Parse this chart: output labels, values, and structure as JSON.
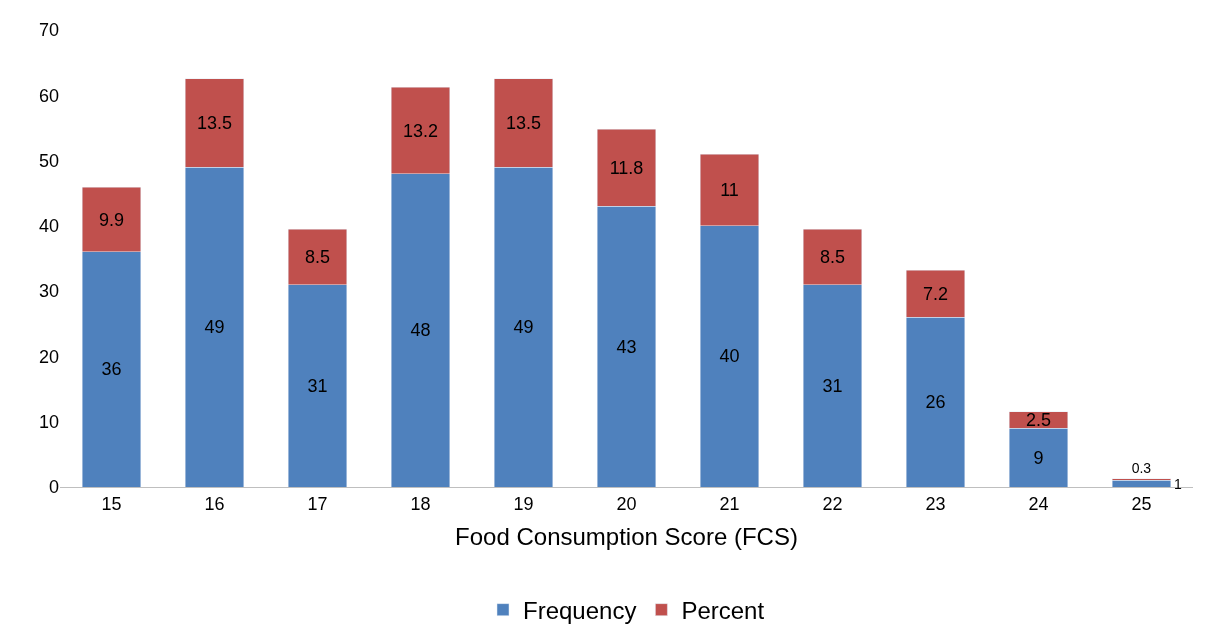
{
  "chart_data": {
    "type": "bar",
    "stacked": true,
    "xlabel": "Food Consumption Score (FCS)",
    "categories": [
      "15",
      "16",
      "17",
      "18",
      "19",
      "20",
      "21",
      "22",
      "23",
      "24",
      "25"
    ],
    "series": [
      {
        "name": "Frequency",
        "color": "#4f81bd",
        "values": [
          36,
          49,
          31,
          48,
          49,
          43,
          40,
          31,
          26,
          9,
          1
        ]
      },
      {
        "name": "Percent",
        "color": "#c0504d",
        "values": [
          9.9,
          13.5,
          8.5,
          13.2,
          13.5,
          11.8,
          11,
          8.5,
          7.2,
          2.5,
          0.3
        ]
      }
    ],
    "ylim": [
      0,
      70
    ],
    "yticks": [
      0,
      10,
      20,
      30,
      40,
      50,
      60,
      70
    ],
    "grid": false,
    "legend": "bottom",
    "data_labels": true
  }
}
